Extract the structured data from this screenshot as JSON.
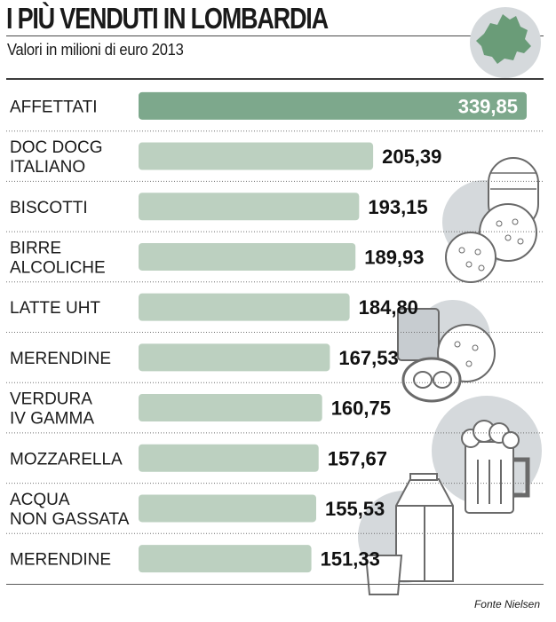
{
  "header": {
    "title": "I PIÙ VENDUTI IN LOMBARDIA",
    "subtitle": "Valori in milioni di euro 2013"
  },
  "source": "Fonte Nielsen",
  "colors": {
    "top_bar": "#7da88c",
    "bar": "#bcd0c0",
    "separator": "#707070",
    "illustration_circle": "#d5d9dc"
  },
  "icons": [
    "lombardy-map-icon",
    "biscuits-icon",
    "snacks-icon",
    "beer-mug-icon",
    "milk-carton-icon"
  ],
  "chart_data": {
    "type": "bar",
    "orientation": "horizontal",
    "categories": [
      "AFFETTATI",
      "DOC DOCG\nITALIANO",
      "BISCOTTI",
      "BIRRE\nALCOLICHE",
      "LATTE UHT",
      "MERENDINE",
      "VERDURA\nIV GAMMA",
      "MOZZARELLA",
      "ACQUA\nNON GASSATA",
      "MERENDINE"
    ],
    "values": [
      339.85,
      205.39,
      193.15,
      189.93,
      184.8,
      167.53,
      160.75,
      157.67,
      155.53,
      151.33
    ],
    "value_labels": [
      "339,85",
      "205,39",
      "193,15",
      "189,93",
      "184,80",
      "167,53",
      "160,75",
      "157,67",
      "155,53",
      "151,33"
    ],
    "title": "I PIÙ VENDUTI IN LOMBARDIA",
    "subtitle": "Valori in milioni di euro 2013",
    "xlabel": "",
    "ylabel": "",
    "grid": false,
    "legend": "none"
  }
}
